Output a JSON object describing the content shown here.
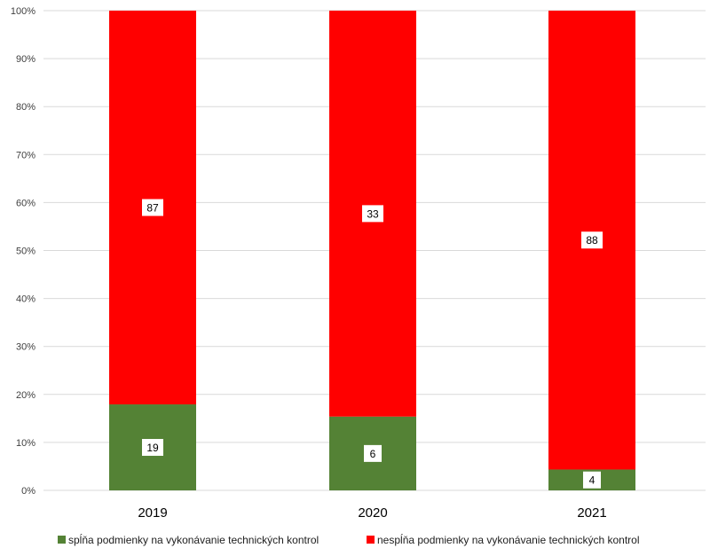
{
  "chart_data": {
    "type": "bar",
    "stacked": true,
    "normalized": true,
    "categories": [
      "2019",
      "2020",
      "2021"
    ],
    "series": [
      {
        "name": "spĺňa podmienky na vykonávanie technických kontrol",
        "values": [
          19,
          6,
          4
        ],
        "color": "#548235"
      },
      {
        "name": "nespĺňa podmienky na vykonávanie technických kontrol",
        "values": [
          87,
          33,
          88
        ],
        "color": "#ff0000"
      }
    ],
    "y_ticks": [
      "0%",
      "10%",
      "20%",
      "30%",
      "40%",
      "50%",
      "60%",
      "70%",
      "80%",
      "90%",
      "100%"
    ],
    "ylim": [
      0,
      100
    ],
    "grid": true,
    "legend_position": "bottom"
  }
}
